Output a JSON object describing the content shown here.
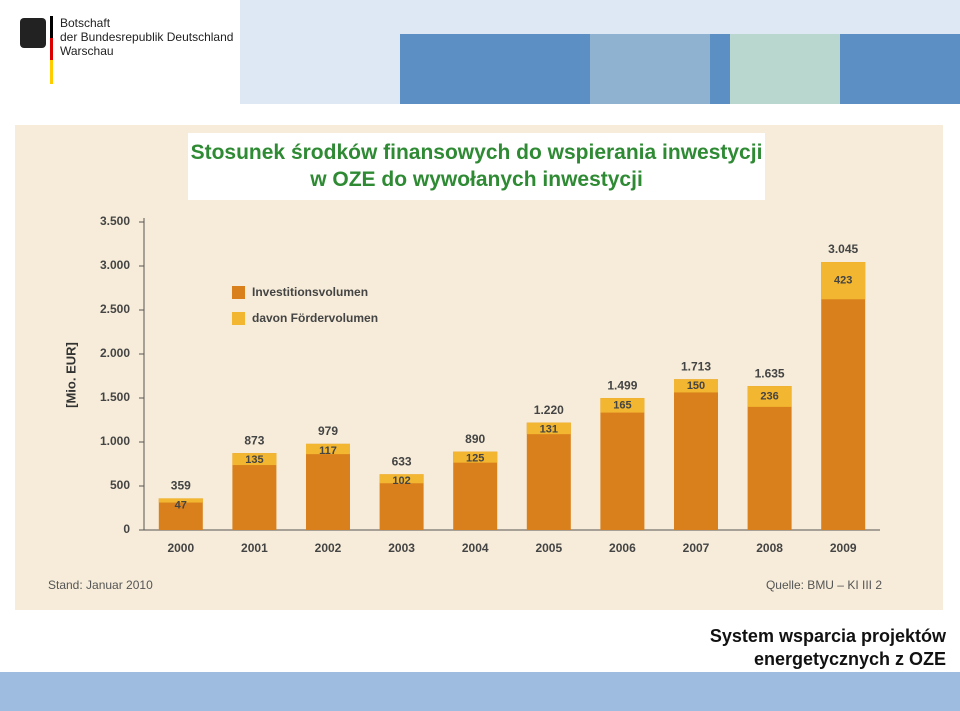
{
  "header": {
    "lines": [
      "Botschaft",
      "der Bundesrepublik Deutschland",
      "Warschau"
    ]
  },
  "chart_data": {
    "type": "bar",
    "title": "Stosunek środków finansowych do wspierania inwestycji w OZE do wywołanych inwestycji",
    "y_label": "[Mio. EUR]",
    "categories": [
      "2000",
      "2001",
      "2002",
      "2003",
      "2004",
      "2005",
      "2006",
      "2007",
      "2008",
      "2009"
    ],
    "series": [
      {
        "name": "Investitionsvolumen",
        "color": "#d9801c",
        "values": [
          359,
          873,
          979,
          633,
          890,
          1220,
          1499,
          1713,
          1635,
          3045
        ],
        "value_labels": [
          "359",
          "873",
          "979",
          "633",
          "890",
          "1.220",
          "1.499",
          "1.713",
          "1.635",
          "3.045"
        ]
      },
      {
        "name": "davon Fördervolumen",
        "color": "#f2b630",
        "values": [
          47,
          135,
          117,
          102,
          125,
          131,
          165,
          150,
          236,
          423
        ]
      }
    ],
    "ylim": [
      0,
      3500
    ],
    "yticks": [
      0,
      500,
      {
        "value": 1000,
        "label": "1.000"
      },
      {
        "value": 1500,
        "label": "1.500"
      },
      {
        "value": 2000,
        "label": "2.000"
      },
      {
        "value": 2500,
        "label": "2.500"
      },
      {
        "value": 3000,
        "label": "3.000"
      },
      {
        "value": 3500,
        "label": "3.500"
      }
    ],
    "notes": [
      "Stand: Januar 2010",
      "Quelle: BMU – KI III 2"
    ]
  },
  "footer": {
    "lines": [
      "System wsparcia projektów",
      "energetycznych z OZE"
    ]
  }
}
